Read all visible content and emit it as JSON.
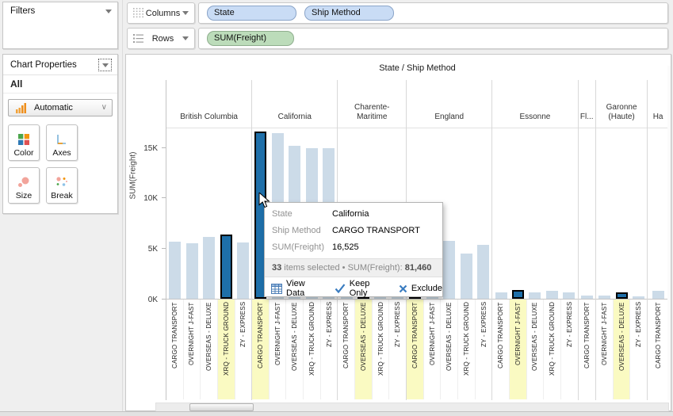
{
  "left_panel": {
    "filters": {
      "title": "Filters"
    },
    "chart_properties": {
      "title": "Chart Properties",
      "section_label": "All",
      "renderer": {
        "label": "Automatic",
        "icon": "bar-chart-icon"
      },
      "buttons": [
        {
          "label": "Color",
          "icon": "color-squares-icon"
        },
        {
          "label": "Axes",
          "icon": "axes-icon"
        },
        {
          "label": "Size",
          "icon": "size-circles-icon"
        },
        {
          "label": "Break",
          "icon": "break-dots-icon"
        }
      ]
    }
  },
  "shelves": {
    "columns": {
      "label": "Columns",
      "pills": [
        {
          "text": "State",
          "type": "dimension"
        },
        {
          "text": "Ship Method",
          "type": "dimension"
        }
      ]
    },
    "rows": {
      "label": "Rows",
      "pills": [
        {
          "text": "SUM(Freight)",
          "type": "measure"
        }
      ]
    }
  },
  "chart_data": {
    "type": "bar",
    "title": "State / Ship Method",
    "ylabel": "SUM(Freight)",
    "ylim": [
      0,
      17000
    ],
    "yticks": [
      {
        "label": "0K",
        "value": 0
      },
      {
        "label": "5K",
        "value": 5000
      },
      {
        "label": "10K",
        "value": 10000
      },
      {
        "label": "15K",
        "value": 15000
      }
    ],
    "grid": false,
    "legend": null,
    "groups": [
      {
        "state": "British Columbia",
        "cells": 5,
        "bars": [
          {
            "method": "CARGO TRANSPORT",
            "value": 5650,
            "selected": false,
            "highlighted": false
          },
          {
            "method": "OVERNIGHT J-FAST",
            "value": 5500,
            "selected": false,
            "highlighted": false
          },
          {
            "method": "OVERSEAS - DELUXE",
            "value": 6100,
            "selected": false,
            "highlighted": false
          },
          {
            "method": "XRQ - TRUCK GROUND",
            "value": 6350,
            "selected": true,
            "highlighted": true
          },
          {
            "method": "ZY - EXPRESS",
            "value": 5600,
            "selected": false,
            "highlighted": false
          }
        ]
      },
      {
        "state": "California",
        "cells": 5,
        "bars": [
          {
            "method": "CARGO TRANSPORT",
            "value": 16525,
            "selected": true,
            "highlighted": true
          },
          {
            "method": "OVERNIGHT J-FAST",
            "value": 16350,
            "selected": false,
            "highlighted": false
          },
          {
            "method": "OVERSEAS - DELUXE",
            "value": 15100,
            "selected": false,
            "highlighted": false
          },
          {
            "method": "XRQ - TRUCK GROUND",
            "value": 14850,
            "selected": false,
            "highlighted": false
          },
          {
            "method": "ZY - EXPRESS",
            "value": 14900,
            "selected": false,
            "highlighted": false
          }
        ]
      },
      {
        "state": "Charente-Maritime",
        "cells": 4,
        "bars": [
          {
            "method": "CARGO TRANSPORT",
            "value": 2600,
            "selected": false,
            "highlighted": false
          },
          {
            "method": "OVERSEAS - DELUXE",
            "value": 3200,
            "selected": true,
            "highlighted": true
          },
          {
            "method": "XRQ - TRUCK GROUND",
            "value": 2300,
            "selected": false,
            "highlighted": false
          },
          {
            "method": "ZY - EXPRESS",
            "value": 2900,
            "selected": false,
            "highlighted": false
          }
        ]
      },
      {
        "state": "England",
        "cells": 5,
        "bars": [
          {
            "method": "CARGO TRANSPORT",
            "value": 5500,
            "selected": true,
            "highlighted": true
          },
          {
            "method": "OVERNIGHT J-FAST",
            "value": 5300,
            "selected": false,
            "highlighted": false
          },
          {
            "method": "OVERSEAS - DELUXE",
            "value": 5700,
            "selected": false,
            "highlighted": false
          },
          {
            "method": "XRQ - TRUCK GROUND",
            "value": 4500,
            "selected": false,
            "highlighted": false
          },
          {
            "method": "ZY - EXPRESS",
            "value": 5300,
            "selected": false,
            "highlighted": false
          }
        ]
      },
      {
        "state": "Essonne",
        "cells": 5,
        "bars": [
          {
            "method": "CARGO TRANSPORT",
            "value": 600,
            "selected": false,
            "highlighted": false
          },
          {
            "method": "OVERNIGHT J-FAST",
            "value": 900,
            "selected": true,
            "highlighted": true
          },
          {
            "method": "OVERSEAS - DELUXE",
            "value": 650,
            "selected": false,
            "highlighted": false
          },
          {
            "method": "XRQ - TRUCK GROUND",
            "value": 750,
            "selected": false,
            "highlighted": false
          },
          {
            "method": "ZY - EXPRESS",
            "value": 650,
            "selected": false,
            "highlighted": false
          }
        ]
      },
      {
        "state": "Fl...",
        "cells": 1,
        "bars": [
          {
            "method": "CARGO TRANSPORT",
            "value": 300,
            "selected": false,
            "highlighted": false
          }
        ]
      },
      {
        "state": "Garonne (Haute)",
        "cells": 3,
        "bars": [
          {
            "method": "OVERNIGHT J-FAST",
            "value": 350,
            "selected": false,
            "highlighted": false
          },
          {
            "method": "OVERSEAS - DELUXE",
            "value": 600,
            "selected": true,
            "highlighted": true
          },
          {
            "method": "ZY - EXPRESS",
            "value": 200,
            "selected": false,
            "highlighted": false
          }
        ]
      },
      {
        "state": "Ha",
        "cells": 1.2,
        "clipped": true,
        "bars": [
          {
            "method": "CARGO TRANSPORT",
            "value": 800,
            "selected": false,
            "highlighted": false
          }
        ]
      }
    ]
  },
  "tooltip": {
    "rows": [
      {
        "label": "State",
        "value": "California"
      },
      {
        "label": "Ship Method",
        "value": "CARGO TRANSPORT"
      },
      {
        "label": "SUM(Freight)",
        "value": "16,525"
      }
    ],
    "summary": {
      "count": "33",
      "middle": " items selected • SUM(Freight): ",
      "total": "81,460"
    },
    "actions": [
      {
        "label": "View Data",
        "icon": "table-icon"
      },
      {
        "label": "Keep Only",
        "icon": "check-icon"
      },
      {
        "label": "Exclude",
        "icon": "x-icon"
      }
    ]
  },
  "colors": {
    "bar": "#ccdbe8",
    "bar_selected": "#1e6fa9",
    "label_highlight": "#fafac2",
    "pill_dimension": "#c9dcf5",
    "pill_measure": "#bcdcba",
    "accent_blue": "#3a7cc0"
  }
}
